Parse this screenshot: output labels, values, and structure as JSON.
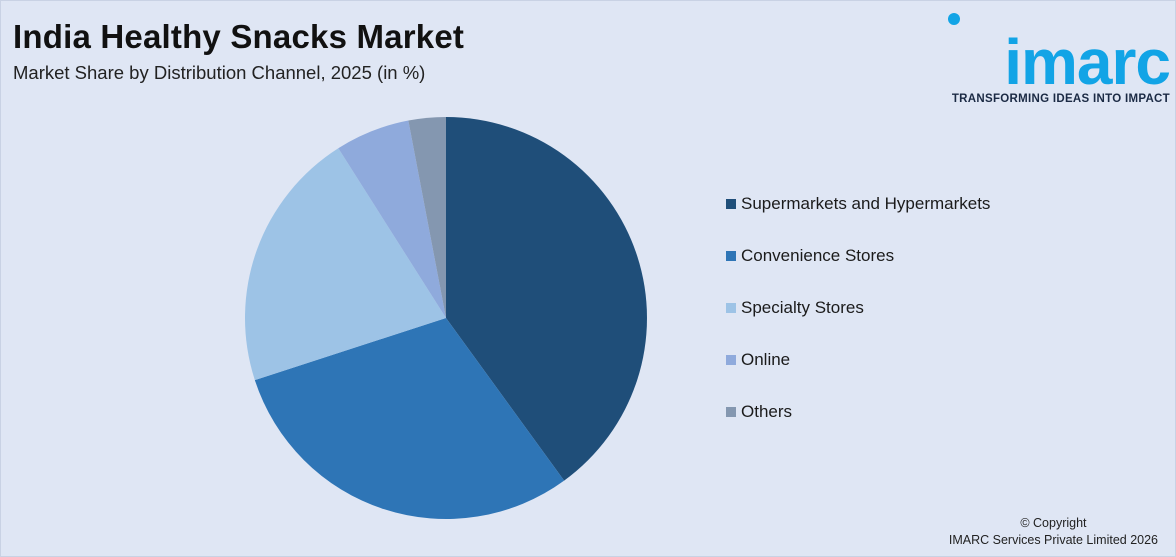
{
  "header": {
    "title": "India Healthy Snacks Market",
    "subtitle": "Market Share by Distribution Channel, 2025 (in %)"
  },
  "logo": {
    "wordmark": "imarc",
    "tagline": "TRANSFORMING IDEAS INTO IMPACT",
    "color": "#12a4e6"
  },
  "chart_data": {
    "type": "pie",
    "title": "India Healthy Snacks Market",
    "subtitle": "Market Share by Distribution Channel, 2025 (in %)",
    "start_angle": "12 o'clock",
    "direction": "clockwise",
    "legend_position": "right",
    "slices": [
      {
        "label": "Supermarkets and Hypermarkets",
        "value": 40,
        "color": "#1f4e79"
      },
      {
        "label": "Convenience Stores",
        "value": 30,
        "color": "#2e75b6"
      },
      {
        "label": "Specialty Stores",
        "value": 21,
        "color": "#9dc3e6"
      },
      {
        "label": "Online",
        "value": 6,
        "color": "#8faadc"
      },
      {
        "label": "Others",
        "value": 3,
        "color": "#8497b0"
      }
    ]
  },
  "footer": {
    "copyright_line1": "© Copyright",
    "copyright_line2": "IMARC Services Private Limited 2026"
  }
}
